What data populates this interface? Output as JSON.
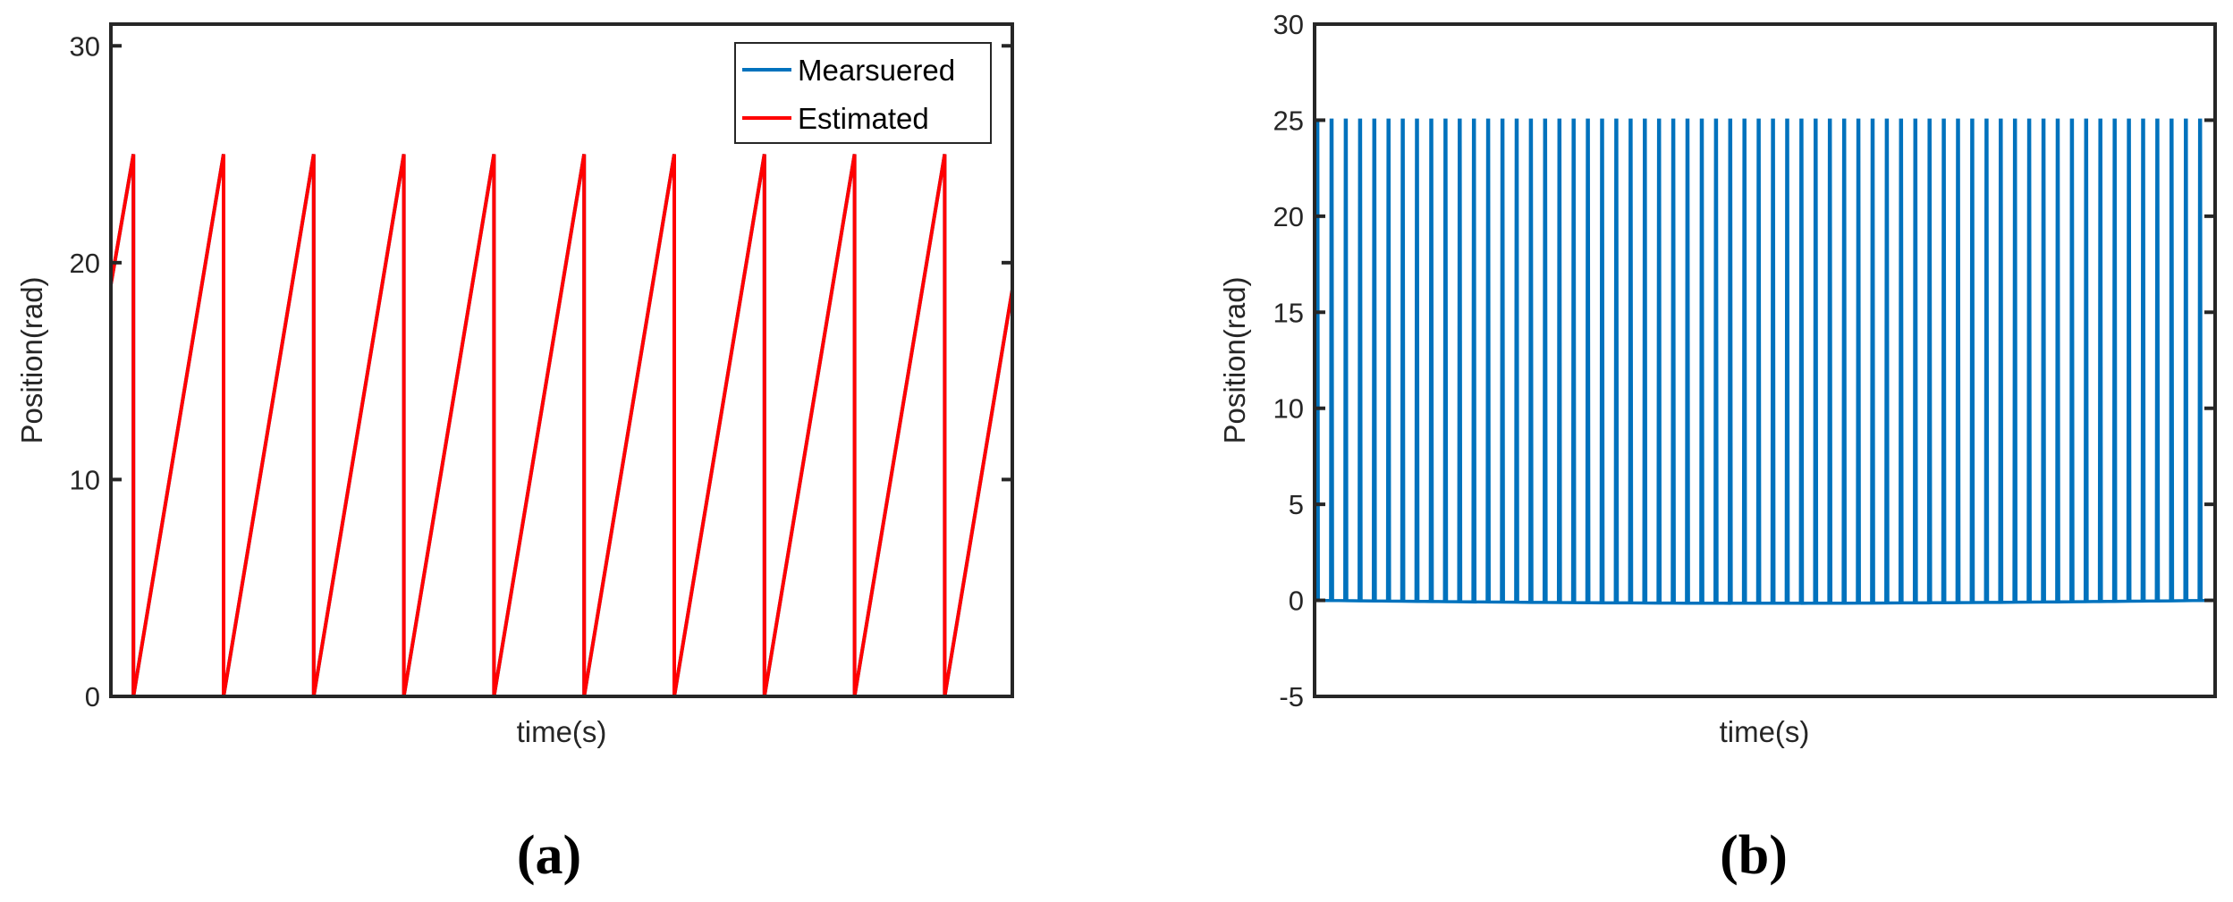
{
  "chart_data": [
    {
      "panel": "(a)",
      "type": "line",
      "xlabel": "time(s)",
      "ylabel": "Position(rad)",
      "ylim": [
        0,
        31
      ],
      "yticks": [
        0,
        10,
        20,
        30
      ],
      "ytick_labels": [
        "0",
        "10",
        "20",
        "30"
      ],
      "xticks": [],
      "grid": false,
      "legend_placement": "top-right",
      "legend": [
        "Mearsuered",
        "Estimated"
      ],
      "x_range": [
        0,
        10
      ],
      "series": [
        {
          "name": "Mearsuered",
          "color": "#0072BD",
          "x": [
            0,
            0.25,
            0.25,
            1.25,
            1.25,
            2.25,
            2.25,
            3.25,
            3.25,
            4.25,
            4.25,
            5.25,
            5.25,
            6.25,
            6.25,
            7.25,
            7.25,
            8.25,
            8.25,
            9.25,
            9.25,
            10
          ],
          "y": [
            19,
            25,
            0,
            25,
            0,
            25,
            0,
            25,
            0,
            25,
            0,
            25,
            0,
            25,
            0,
            25,
            0,
            25,
            0,
            25,
            0,
            18.75
          ]
        },
        {
          "name": "Estimated",
          "color": "#FF0000",
          "x": [
            0,
            0.25,
            0.25,
            1.25,
            1.25,
            2.25,
            2.25,
            3.25,
            3.25,
            4.25,
            4.25,
            5.25,
            5.25,
            6.25,
            6.25,
            7.25,
            7.25,
            8.25,
            8.25,
            9.25,
            9.25,
            10
          ],
          "y": [
            19,
            25,
            0,
            25,
            0,
            25,
            0,
            25,
            0,
            25,
            0,
            25,
            0,
            25,
            0,
            25,
            0,
            25,
            0,
            25,
            0,
            18.75
          ]
        }
      ]
    },
    {
      "panel": "(b)",
      "type": "line",
      "xlabel": "time(s)",
      "ylabel": "Position(rad)",
      "ylim": [
        -5,
        30
      ],
      "yticks": [
        -5,
        0,
        5,
        10,
        15,
        20,
        25,
        30
      ],
      "ytick_labels": [
        "-5",
        "0",
        "5",
        "10",
        "15",
        "20",
        "25",
        "30"
      ],
      "xticks": [],
      "grid": false,
      "series": [
        {
          "name": "",
          "color": "#0072BD",
          "pulse_count": 63,
          "pulse_high": 25,
          "baseline": 0,
          "baseline_min": -0.15
        }
      ]
    }
  ],
  "panel_labels": [
    "(a)",
    "(b)"
  ]
}
